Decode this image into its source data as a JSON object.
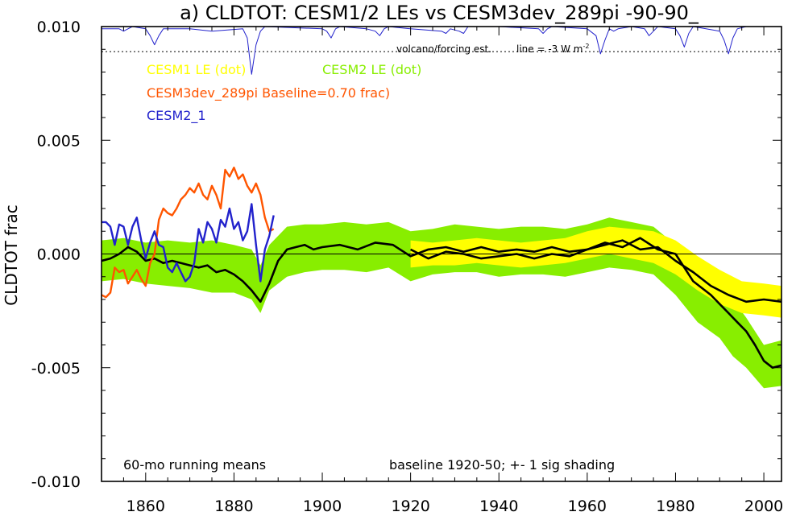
{
  "chart_data": {
    "type": "line",
    "title": "a) CLDTOT: CESM1/2 LEs vs CESM3dev_289pi -90-90_",
    "ylabel": "CLDTOT frac",
    "xlabel": "",
    "xlim": [
      1850,
      2004
    ],
    "ylim": [
      -0.01,
      0.01
    ],
    "xticks": [
      1860,
      1880,
      1900,
      1920,
      1940,
      1960,
      1980,
      2000
    ],
    "xtick_labels": [
      "1860",
      "1880",
      "1900",
      "1920",
      "1940",
      "1960",
      "1980",
      "2000"
    ],
    "yticks": [
      0.01,
      0.005,
      0.0,
      -0.005,
      -0.01
    ],
    "ytick_labels": [
      "0.010",
      "0.005",
      "0.000",
      "-0.005",
      "-0.010"
    ],
    "zero_line": 0.0,
    "volcano_ref_line": 0.0089,
    "legend": [
      {
        "label": "CESM1 LE (dot)",
        "color": "#ffff00"
      },
      {
        "label": "CESM2 LE (dot)",
        "color": "#88ee00"
      },
      {
        "label": "CESM3dev_289pi Baseline=0.70 frac)",
        "color": "#ff5500"
      },
      {
        "label": "CESM2_1",
        "color": "#2222cc"
      }
    ],
    "annotations": {
      "volcano": "volcano/forcing est.",
      "line_prefix": "line = -3 W m",
      "line_sup": "-2",
      "running_means": "60-mo running means",
      "baseline": "baseline 1920-50; +- 1 sig shading"
    },
    "series": [
      {
        "name": "CESM2 LE (dot)",
        "kind": "band",
        "color": "#88ee00",
        "x": [
          1850,
          1855,
          1860,
          1865,
          1870,
          1875,
          1880,
          1884,
          1886,
          1888,
          1892,
          1896,
          1900,
          1905,
          1910,
          1915,
          1920,
          1925,
          1930,
          1935,
          1940,
          1945,
          1950,
          1955,
          1960,
          1965,
          1970,
          1975,
          1980,
          1985,
          1990,
          1993,
          1996,
          2000,
          2004
        ],
        "upper": [
          0.0006,
          0.0007,
          0.0005,
          0.0006,
          0.0005,
          0.0006,
          0.0004,
          0.0002,
          -0.0005,
          0.0004,
          0.0012,
          0.0013,
          0.0013,
          0.0014,
          0.0013,
          0.0014,
          0.001,
          0.0011,
          0.0013,
          0.0012,
          0.0011,
          0.0012,
          0.0012,
          0.0011,
          0.0013,
          0.0016,
          0.0014,
          0.0012,
          0.0004,
          -0.0008,
          -0.0012,
          -0.002,
          -0.0028,
          -0.004,
          -0.0038
        ],
        "lower": [
          -0.0012,
          -0.0011,
          -0.0013,
          -0.0014,
          -0.0015,
          -0.0017,
          -0.0017,
          -0.002,
          -0.0026,
          -0.0016,
          -0.001,
          -0.0008,
          -0.0007,
          -0.0007,
          -0.0008,
          -0.0006,
          -0.0012,
          -0.0009,
          -0.0008,
          -0.0008,
          -0.001,
          -0.0009,
          -0.0009,
          -0.001,
          -0.0008,
          -0.0006,
          -0.0007,
          -0.0009,
          -0.0018,
          -0.003,
          -0.0037,
          -0.0045,
          -0.005,
          -0.0059,
          -0.0058
        ]
      },
      {
        "name": "CESM1 LE (dot)",
        "kind": "band",
        "color": "#ffff00",
        "x": [
          1920,
          1925,
          1930,
          1935,
          1940,
          1945,
          1950,
          1955,
          1960,
          1965,
          1970,
          1975,
          1980,
          1985,
          1990,
          1995,
          2000,
          2004
        ],
        "upper": [
          0.0006,
          0.0005,
          0.0006,
          0.0007,
          0.0006,
          0.0005,
          0.0006,
          0.0007,
          0.001,
          0.0012,
          0.0011,
          0.001,
          0.0006,
          -0.0001,
          -0.0007,
          -0.0012,
          -0.0013,
          -0.0014
        ],
        "lower": [
          -0.0006,
          -0.0005,
          -0.0005,
          -0.0004,
          -0.0005,
          -0.0006,
          -0.0005,
          -0.0004,
          -0.0002,
          0.0,
          -0.0002,
          -0.0004,
          -0.0009,
          -0.0016,
          -0.0022,
          -0.0026,
          -0.0027,
          -0.0028
        ]
      },
      {
        "name": "CESM2 LE mean",
        "kind": "line",
        "color": "#000000",
        "x": [
          1850,
          1852,
          1854,
          1856,
          1858,
          1860,
          1862,
          1864,
          1866,
          1868,
          1870,
          1872,
          1874,
          1876,
          1878,
          1880,
          1882,
          1884,
          1886,
          1888,
          1890,
          1892,
          1894,
          1896,
          1898,
          1900,
          1904,
          1908,
          1912,
          1916,
          1920,
          1924,
          1928,
          1932,
          1936,
          1940,
          1944,
          1948,
          1952,
          1956,
          1960,
          1964,
          1968,
          1972,
          1976,
          1980,
          1984,
          1988,
          1992,
          1994,
          1996,
          1998,
          2000,
          2002,
          2004
        ],
        "y": [
          -0.0003,
          -0.0002,
          0.0,
          0.0003,
          0.0001,
          -0.0003,
          -0.0002,
          -0.0004,
          -0.0003,
          -0.0004,
          -0.0005,
          -0.0006,
          -0.0005,
          -0.0008,
          -0.0007,
          -0.0009,
          -0.0012,
          -0.0016,
          -0.0021,
          -0.0013,
          -0.0003,
          0.0002,
          0.0003,
          0.0004,
          0.0002,
          0.0003,
          0.0004,
          0.0002,
          0.0005,
          0.0004,
          -0.0001,
          0.0002,
          0.0003,
          0.0001,
          0.0003,
          0.0001,
          0.0002,
          0.0001,
          0.0003,
          0.0001,
          0.0002,
          0.0005,
          0.0003,
          0.0007,
          0.0002,
          0.0,
          -0.0012,
          -0.0018,
          -0.0026,
          -0.003,
          -0.0034,
          -0.004,
          -0.0047,
          -0.005,
          -0.0049
        ]
      },
      {
        "name": "CESM1 LE mean",
        "kind": "line",
        "color": "#000000",
        "x": [
          1920,
          1924,
          1928,
          1932,
          1936,
          1940,
          1944,
          1948,
          1952,
          1956,
          1960,
          1964,
          1968,
          1972,
          1976,
          1980,
          1984,
          1988,
          1992,
          1996,
          2000,
          2004
        ],
        "y": [
          0.0002,
          -0.0002,
          0.0001,
          0.0,
          -0.0002,
          -0.0001,
          0.0,
          -0.0002,
          0.0,
          -0.0001,
          0.0002,
          0.0004,
          0.0006,
          0.0002,
          0.0003,
          -0.0003,
          -0.0008,
          -0.0014,
          -0.0018,
          -0.0021,
          -0.002,
          -0.0021
        ]
      },
      {
        "name": "CESM3dev_289pi Baseline=0.70 frac)",
        "kind": "line",
        "color": "#ff5500",
        "x": [
          1850,
          1851,
          1852,
          1853,
          1854,
          1855,
          1856,
          1857,
          1858,
          1859,
          1860,
          1861,
          1862,
          1863,
          1864,
          1865,
          1866,
          1867,
          1868,
          1869,
          1870,
          1871,
          1872,
          1873,
          1874,
          1875,
          1876,
          1877,
          1878,
          1879,
          1880,
          1881,
          1882,
          1883,
          1884,
          1885,
          1886,
          1887,
          1888,
          1889
        ],
        "y": [
          -0.0018,
          -0.0019,
          -0.0017,
          -0.0006,
          -0.0008,
          -0.0007,
          -0.0013,
          -0.001,
          -0.0007,
          -0.0011,
          -0.0014,
          -0.0004,
          0.0,
          0.0015,
          0.002,
          0.0018,
          0.0017,
          0.002,
          0.0024,
          0.0026,
          0.0029,
          0.0027,
          0.0031,
          0.0026,
          0.0024,
          0.003,
          0.0026,
          0.002,
          0.0037,
          0.0034,
          0.0038,
          0.0033,
          0.0035,
          0.003,
          0.0027,
          0.0031,
          0.0026,
          0.0016,
          0.001,
          0.0011
        ]
      },
      {
        "name": "CESM2_1",
        "kind": "line",
        "color": "#2222cc",
        "x": [
          1850,
          1851,
          1852,
          1853,
          1854,
          1855,
          1856,
          1857,
          1858,
          1859,
          1860,
          1861,
          1862,
          1863,
          1864,
          1865,
          1866,
          1867,
          1868,
          1869,
          1870,
          1871,
          1872,
          1873,
          1874,
          1875,
          1876,
          1877,
          1878,
          1879,
          1880,
          1881,
          1882,
          1883,
          1884,
          1885,
          1886,
          1887,
          1888,
          1889
        ],
        "y": [
          0.0014,
          0.0014,
          0.0012,
          0.0004,
          0.0013,
          0.0012,
          0.0004,
          0.0012,
          0.0016,
          0.0006,
          -0.0002,
          0.0005,
          0.001,
          0.0004,
          0.0003,
          -0.0006,
          -0.0008,
          -0.0004,
          -0.0008,
          -0.0012,
          -0.001,
          -0.0004,
          0.0011,
          0.0005,
          0.0014,
          0.0011,
          0.0005,
          0.0015,
          0.0012,
          0.002,
          0.0011,
          0.0014,
          0.0006,
          0.001,
          0.0022,
          0.0004,
          -0.0012,
          0.0002,
          0.0008,
          0.0017
        ]
      },
      {
        "name": "volcano/forcing est.",
        "kind": "line",
        "color": "#2222cc",
        "x": [
          1850,
          1854,
          1855,
          1856,
          1857,
          1860,
          1861,
          1862,
          1863,
          1864,
          1870,
          1875,
          1882,
          1883,
          1884,
          1885,
          1886,
          1887,
          1900,
          1901,
          1902,
          1903,
          1904,
          1910,
          1912,
          1913,
          1914,
          1915,
          1920,
          1927,
          1928,
          1929,
          1931,
          1932,
          1933,
          1940,
          1949,
          1950,
          1951,
          1952,
          1960,
          1962,
          1963,
          1964,
          1965,
          1966,
          1967,
          1970,
          1973,
          1974,
          1975,
          1976,
          1980,
          1981,
          1982,
          1983,
          1984,
          1990,
          1991,
          1992,
          1993,
          1994,
          1996,
          2004
        ],
        "y": [
          0.0099,
          0.0099,
          0.0098,
          0.0099,
          0.01,
          0.0099,
          0.0096,
          0.0092,
          0.0096,
          0.0099,
          0.0099,
          0.0098,
          0.0099,
          0.0095,
          0.0079,
          0.0092,
          0.0098,
          0.01,
          0.0099,
          0.0098,
          0.0095,
          0.0099,
          0.01,
          0.0099,
          0.0098,
          0.0096,
          0.0099,
          0.01,
          0.0099,
          0.0098,
          0.0097,
          0.0099,
          0.0098,
          0.0097,
          0.01,
          0.01,
          0.0099,
          0.0097,
          0.0099,
          0.01,
          0.0099,
          0.0096,
          0.0088,
          0.0094,
          0.0099,
          0.0098,
          0.0099,
          0.01,
          0.0099,
          0.0096,
          0.0098,
          0.01,
          0.0099,
          0.0096,
          0.0091,
          0.0097,
          0.01,
          0.0098,
          0.0094,
          0.0088,
          0.0095,
          0.0099,
          0.01,
          0.01
        ]
      }
    ]
  }
}
